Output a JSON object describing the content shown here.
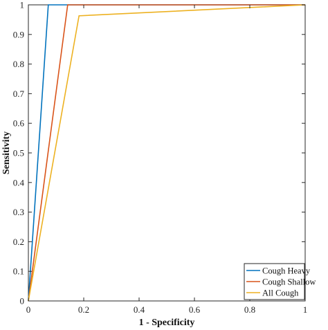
{
  "chart_data": {
    "type": "line",
    "title": "",
    "xlabel": "1 - Specificity",
    "ylabel": "Sensitivity",
    "xlim": [
      0,
      1
    ],
    "ylim": [
      0,
      1
    ],
    "xticks": [
      0,
      0.2,
      0.4,
      0.6,
      0.8,
      1
    ],
    "xtick_labels": [
      "0",
      "0.2",
      "0.4",
      "0.6",
      "0.8",
      "1"
    ],
    "yticks": [
      0,
      0.1,
      0.2,
      0.3,
      0.4,
      0.5,
      0.6,
      0.7,
      0.8,
      0.9,
      1
    ],
    "ytick_labels": [
      "0",
      "0.1",
      "0.2",
      "0.3",
      "0.4",
      "0.5",
      "0.6",
      "0.7",
      "0.8",
      "0.9",
      "1"
    ],
    "grid": false,
    "legend": "bottom-right",
    "series": [
      {
        "name": "Cough Heavy",
        "color": "#0072BD",
        "x": [
          0,
          0.072,
          1
        ],
        "y": [
          0,
          1,
          1
        ]
      },
      {
        "name": "Cough Shallow",
        "color": "#D95319",
        "x": [
          0,
          0.142,
          1
        ],
        "y": [
          0,
          1,
          1
        ]
      },
      {
        "name": "All Cough",
        "color": "#EDB120",
        "x": [
          0,
          0.183,
          1
        ],
        "y": [
          0,
          0.963,
          1
        ]
      }
    ]
  }
}
